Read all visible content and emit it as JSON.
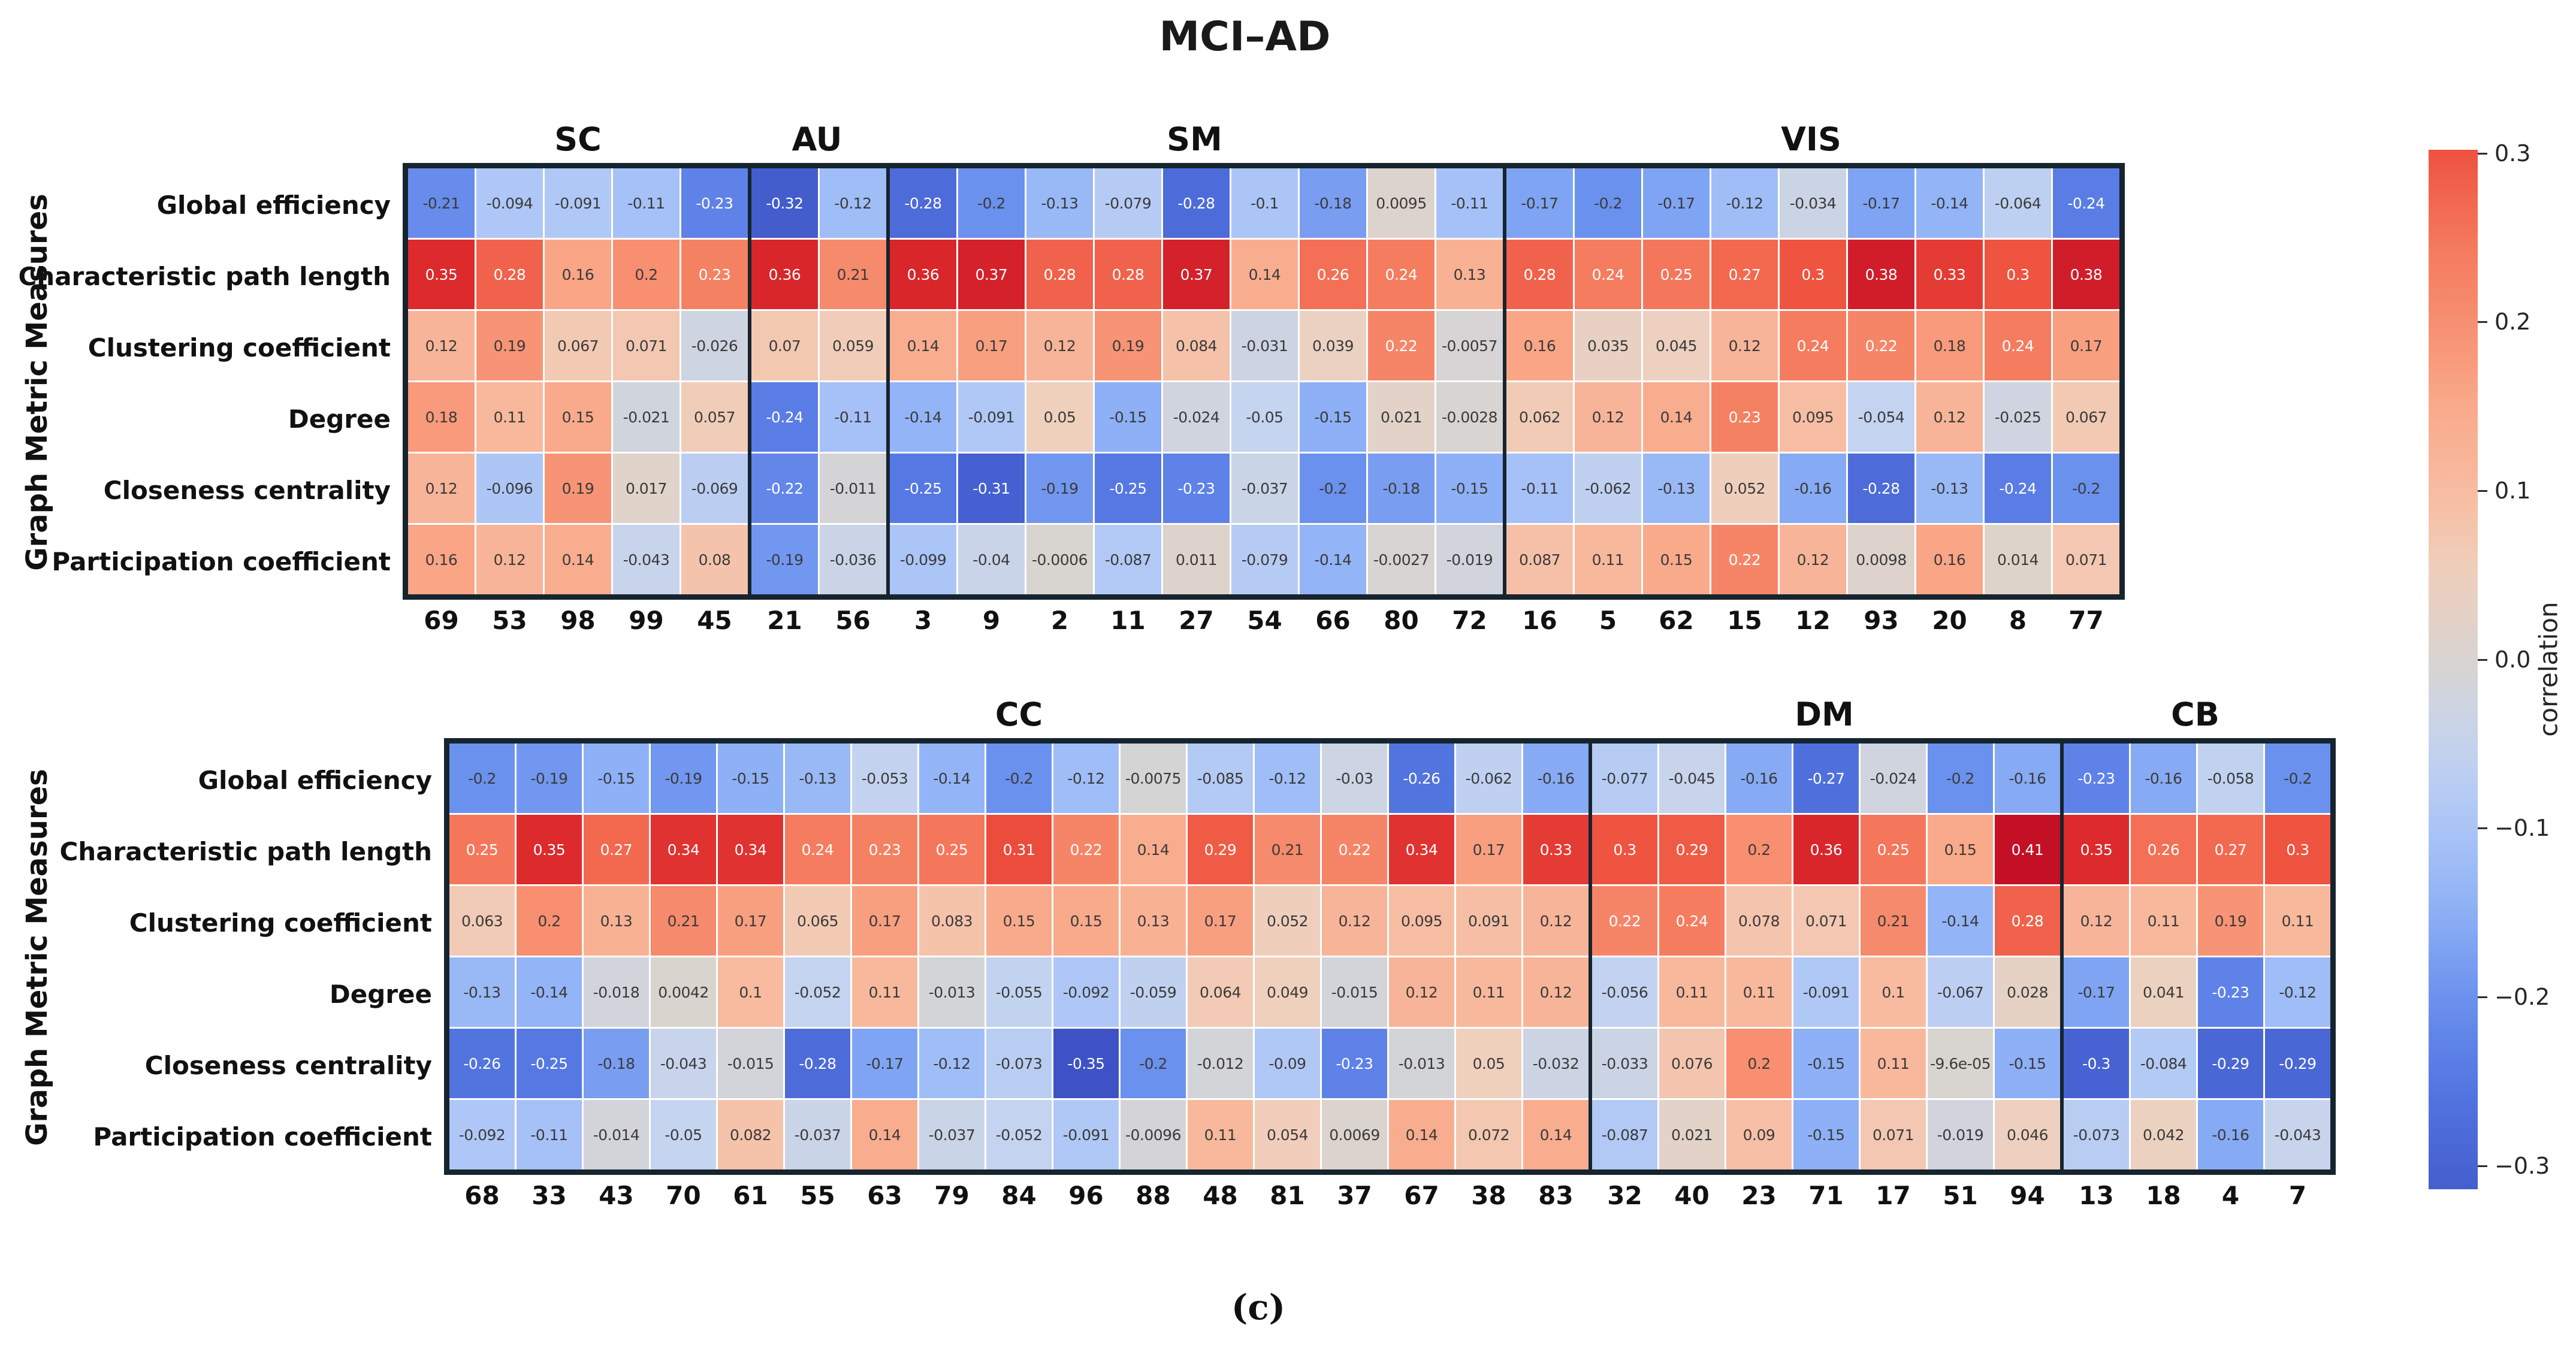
{
  "chart_data": {
    "type": "heatmap",
    "title": "MCI–AD",
    "caption": "(c)",
    "ylabel": "Graph Metric Measures",
    "row_labels": [
      "Global efficiency",
      "Characteristic path length",
      "Clustering coefficient",
      "Degree",
      "Closeness centrality",
      "Participation coefficient"
    ],
    "colorbar": {
      "label": "correlation",
      "ticks": [
        "0.3",
        "0.2",
        "0.1",
        "0.0",
        "−0.1",
        "−0.2",
        "−0.3"
      ]
    },
    "palette": [
      [
        -0.4,
        "#3448b8"
      ],
      [
        -0.35,
        "#3d53c5"
      ],
      [
        -0.3,
        "#4763d3"
      ],
      [
        -0.25,
        "#5578e2"
      ],
      [
        -0.2,
        "#6b91ee"
      ],
      [
        -0.15,
        "#8db0f6"
      ],
      [
        -0.1,
        "#abc5f7"
      ],
      [
        -0.05,
        "#c5d4ef"
      ],
      [
        0.0,
        "#d8d4d0"
      ],
      [
        0.05,
        "#efd0bd"
      ],
      [
        0.1,
        "#f8bba0"
      ],
      [
        0.15,
        "#f9aa8b"
      ],
      [
        0.2,
        "#f78f70"
      ],
      [
        0.25,
        "#f4775b"
      ],
      [
        0.3,
        "#ee5440"
      ],
      [
        0.35,
        "#dd2a2c"
      ],
      [
        0.42,
        "#c00c24"
      ]
    ],
    "panels": [
      {
        "id": "top",
        "groups": [
          {
            "name": "SC",
            "ticks": [
              "69",
              "53",
              "98",
              "99",
              "45"
            ],
            "rows": [
              [
                "-0.21",
                "-0.094",
                "-0.091",
                "-0.11",
                "-0.23"
              ],
              [
                "0.35",
                "0.28",
                "0.16",
                "0.2",
                "0.23"
              ],
              [
                "0.12",
                "0.19",
                "0.067",
                "0.071",
                "-0.026"
              ],
              [
                "0.18",
                "0.11",
                "0.15",
                "-0.021",
                "0.057"
              ],
              [
                "0.12",
                "-0.096",
                "0.19",
                "0.017",
                "-0.069"
              ],
              [
                "0.16",
                "0.12",
                "0.14",
                "-0.043",
                "0.08"
              ]
            ]
          },
          {
            "name": "AU",
            "ticks": [
              "21",
              "56"
            ],
            "rows": [
              [
                "-0.32",
                "-0.12"
              ],
              [
                "0.36",
                "0.21"
              ],
              [
                "0.07",
                "0.059"
              ],
              [
                "-0.24",
                "-0.11"
              ],
              [
                "-0.22",
                "-0.011"
              ],
              [
                "-0.19",
                "-0.036"
              ]
            ]
          },
          {
            "name": "SM",
            "ticks": [
              "3",
              "9",
              "2",
              "11",
              "27",
              "54",
              "66",
              "80",
              "72"
            ],
            "rows": [
              [
                "-0.28",
                "-0.2",
                "-0.13",
                "-0.079",
                "-0.28",
                "-0.1",
                "-0.18",
                "0.0095",
                "-0.11"
              ],
              [
                "0.36",
                "0.37",
                "0.28",
                "0.28",
                "0.37",
                "0.14",
                "0.26",
                "0.24",
                "0.13"
              ],
              [
                "0.14",
                "0.17",
                "0.12",
                "0.19",
                "0.084",
                "-0.031",
                "0.039",
                "0.22",
                "-0.0057"
              ],
              [
                "-0.14",
                "-0.091",
                "0.05",
                "-0.15",
                "-0.024",
                "-0.05",
                "-0.15",
                "0.021",
                "-0.0028"
              ],
              [
                "-0.25",
                "-0.31",
                "-0.19",
                "-0.25",
                "-0.23",
                "-0.037",
                "-0.2",
                "-0.18",
                "-0.15"
              ],
              [
                "-0.099",
                "-0.04",
                "-0.0006",
                "-0.087",
                "0.011",
                "-0.079",
                "-0.14",
                "-0.0027",
                "-0.019"
              ]
            ]
          },
          {
            "name": "VIS",
            "ticks": [
              "16",
              "5",
              "62",
              "15",
              "12",
              "93",
              "20",
              "8",
              "77"
            ],
            "rows": [
              [
                "-0.17",
                "-0.2",
                "-0.17",
                "-0.12",
                "-0.034",
                "-0.17",
                "-0.14",
                "-0.064",
                "-0.24"
              ],
              [
                "0.28",
                "0.24",
                "0.25",
                "0.27",
                "0.3",
                "0.38",
                "0.33",
                "0.3",
                "0.38"
              ],
              [
                "0.16",
                "0.035",
                "0.045",
                "0.12",
                "0.24",
                "0.22",
                "0.18",
                "0.24",
                "0.17"
              ],
              [
                "0.062",
                "0.12",
                "0.14",
                "0.23",
                "0.095",
                "-0.054",
                "0.12",
                "-0.025",
                "0.067"
              ],
              [
                "-0.11",
                "-0.062",
                "-0.13",
                "0.052",
                "-0.16",
                "-0.28",
                "-0.13",
                "-0.24",
                "-0.2"
              ],
              [
                "0.087",
                "0.11",
                "0.15",
                "0.22",
                "0.12",
                "0.0098",
                "0.16",
                "0.014",
                "0.071"
              ]
            ]
          }
        ]
      },
      {
        "id": "bottom",
        "groups": [
          {
            "name": "CC",
            "ticks": [
              "68",
              "33",
              "43",
              "70",
              "61",
              "55",
              "63",
              "79",
              "84",
              "96",
              "88",
              "48",
              "81",
              "37",
              "67",
              "38",
              "83"
            ],
            "rows": [
              [
                "-0.2",
                "-0.19",
                "-0.15",
                "-0.19",
                "-0.15",
                "-0.13",
                "-0.053",
                "-0.14",
                "-0.2",
                "-0.12",
                "-0.0075",
                "-0.085",
                "-0.12",
                "-0.03",
                "-0.26",
                "-0.062",
                "-0.16"
              ],
              [
                "0.25",
                "0.35",
                "0.27",
                "0.34",
                "0.34",
                "0.24",
                "0.23",
                "0.25",
                "0.31",
                "0.22",
                "0.14",
                "0.29",
                "0.21",
                "0.22",
                "0.34",
                "0.17",
                "0.33"
              ],
              [
                "0.063",
                "0.2",
                "0.13",
                "0.21",
                "0.17",
                "0.065",
                "0.17",
                "0.083",
                "0.15",
                "0.15",
                "0.13",
                "0.17",
                "0.052",
                "0.12",
                "0.095",
                "0.091",
                "0.12"
              ],
              [
                "-0.13",
                "-0.14",
                "-0.018",
                "0.0042",
                "0.1",
                "-0.052",
                "0.11",
                "-0.013",
                "-0.055",
                "-0.092",
                "-0.059",
                "0.064",
                "0.049",
                "-0.015",
                "0.12",
                "0.11",
                "0.12"
              ],
              [
                "-0.26",
                "-0.25",
                "-0.18",
                "-0.043",
                "-0.015",
                "-0.28",
                "-0.17",
                "-0.12",
                "-0.073",
                "-0.35",
                "-0.2",
                "-0.012",
                "-0.09",
                "-0.23",
                "-0.013",
                "0.05",
                "-0.032"
              ],
              [
                "-0.092",
                "-0.11",
                "-0.014",
                "-0.05",
                "0.082",
                "-0.037",
                "0.14",
                "-0.037",
                "-0.052",
                "-0.091",
                "-0.0096",
                "0.11",
                "0.054",
                "0.0069",
                "0.14",
                "0.072",
                "0.14"
              ]
            ]
          },
          {
            "name": "DM",
            "ticks": [
              "32",
              "40",
              "23",
              "71",
              "17",
              "51",
              "94"
            ],
            "rows": [
              [
                "-0.077",
                "-0.045",
                "-0.16",
                "-0.27",
                "-0.024",
                "-0.2",
                "-0.16"
              ],
              [
                "0.3",
                "0.29",
                "0.2",
                "0.36",
                "0.25",
                "0.15",
                "0.41"
              ],
              [
                "0.22",
                "0.24",
                "0.078",
                "0.071",
                "0.21",
                "-0.14",
                "0.28"
              ],
              [
                "-0.056",
                "0.11",
                "0.11",
                "-0.091",
                "0.1",
                "-0.067",
                "0.028"
              ],
              [
                "-0.033",
                "0.076",
                "0.2",
                "-0.15",
                "0.11",
                "-9.6e-05",
                "-0.15"
              ],
              [
                "-0.087",
                "0.021",
                "0.09",
                "-0.15",
                "0.071",
                "-0.019",
                "0.046"
              ]
            ]
          },
          {
            "name": "CB",
            "ticks": [
              "13",
              "18",
              "4",
              "7"
            ],
            "rows": [
              [
                "-0.23",
                "-0.16",
                "-0.058",
                "-0.2"
              ],
              [
                "0.35",
                "0.26",
                "0.27",
                "0.3"
              ],
              [
                "0.12",
                "0.11",
                "0.19",
                "0.11"
              ],
              [
                "-0.17",
                "0.041",
                "-0.23",
                "-0.12"
              ],
              [
                "-0.3",
                "-0.084",
                "-0.29",
                "-0.29"
              ],
              [
                "-0.073",
                "0.042",
                "-0.16",
                "-0.043"
              ]
            ]
          }
        ]
      }
    ]
  }
}
